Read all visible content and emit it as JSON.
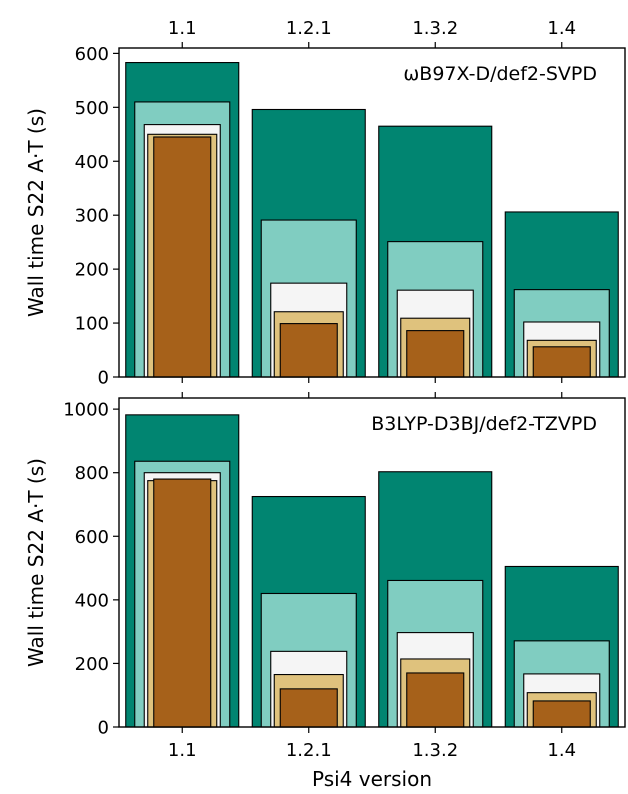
{
  "chart_data": [
    {
      "type": "bar",
      "annotation": "ωB97X-D/def2-SVPD",
      "ylabel": "Wall time S22 A·T (s)",
      "xlabel": "",
      "categories": [
        "1.1",
        "1.2.1",
        "1.3.2",
        "1.4"
      ],
      "ylim": [
        0,
        610
      ],
      "yticks": [
        "0",
        "100",
        "200",
        "300",
        "400",
        "500",
        "600"
      ],
      "series": [
        {
          "color": "#018571",
          "values": [
            583,
            496,
            465,
            306
          ]
        },
        {
          "color": "#80cdc1",
          "values": [
            510,
            291,
            251,
            162
          ]
        },
        {
          "color": "#f5f5f5",
          "values": [
            468,
            174,
            161,
            102
          ]
        },
        {
          "color": "#dfc27d",
          "values": [
            450,
            121,
            109,
            68
          ]
        },
        {
          "color": "#a6611a",
          "values": [
            445,
            99,
            86,
            56
          ]
        }
      ],
      "grid": false,
      "legend": "none"
    },
    {
      "type": "bar",
      "annotation": "B3LYP-D3BJ/def2-TZVPD",
      "ylabel": "Wall time S22 A·T (s)",
      "xlabel": "Psi4 version",
      "categories": [
        "1.1",
        "1.2.1",
        "1.3.2",
        "1.4"
      ],
      "ylim": [
        0,
        1035
      ],
      "yticks": [
        "0",
        "200",
        "400",
        "600",
        "800",
        "1000"
      ],
      "series": [
        {
          "color": "#018571",
          "values": [
            982,
            725,
            803,
            505
          ]
        },
        {
          "color": "#80cdc1",
          "values": [
            836,
            420,
            461,
            271
          ]
        },
        {
          "color": "#f5f5f5",
          "values": [
            800,
            238,
            297,
            167
          ]
        },
        {
          "color": "#dfc27d",
          "values": [
            775,
            165,
            214,
            108
          ]
        },
        {
          "color": "#a6611a",
          "values": [
            780,
            120,
            170,
            82
          ]
        }
      ],
      "grid": false,
      "legend": "none"
    }
  ]
}
